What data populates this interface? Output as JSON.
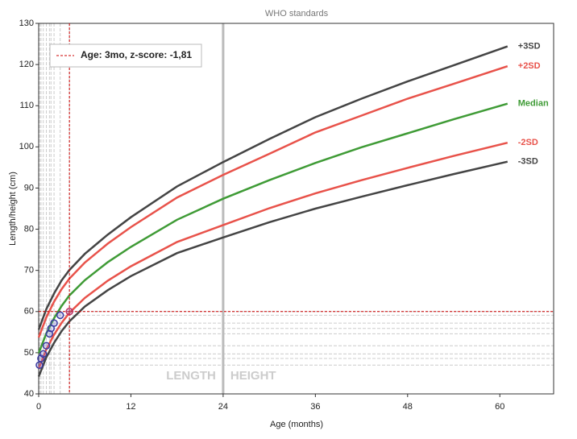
{
  "chart_data": {
    "type": "line",
    "title": "WHO standards",
    "x_label": "Age (months)",
    "y_label": "Length/height (cm)",
    "xlim": [
      0,
      67
    ],
    "ylim": [
      40,
      130
    ],
    "xticks": [
      0,
      12,
      24,
      36,
      48,
      60
    ],
    "yticks": [
      40,
      50,
      60,
      70,
      80,
      90,
      100,
      110,
      120,
      130
    ],
    "x": [
      0,
      1,
      2,
      3,
      4,
      6,
      9,
      12,
      18,
      24,
      30,
      36,
      42,
      48,
      54,
      61
    ],
    "series": [
      {
        "name": "+3SD",
        "color": "#444444",
        "values": [
          55.6,
          60.6,
          64.4,
          67.6,
          70.1,
          74.0,
          78.7,
          82.9,
          90.4,
          96.3,
          101.9,
          107.2,
          111.7,
          115.9,
          119.8,
          124.4
        ]
      },
      {
        "name": "+2SD",
        "color": "#e8524a",
        "values": [
          53.7,
          58.6,
          62.4,
          65.5,
          68.0,
          71.9,
          76.5,
          80.5,
          87.7,
          93.2,
          98.3,
          103.5,
          107.6,
          111.7,
          115.3,
          119.6
        ]
      },
      {
        "name": "Median",
        "color": "#3f9b36",
        "values": [
          49.9,
          54.7,
          58.4,
          61.4,
          63.9,
          67.6,
          72.0,
          75.7,
          82.3,
          87.4,
          91.9,
          96.1,
          99.9,
          103.3,
          106.7,
          110.5
        ]
      },
      {
        "name": "-2SD",
        "color": "#e8524a",
        "values": [
          46.1,
          50.8,
          54.4,
          57.3,
          59.7,
          63.3,
          67.5,
          71.0,
          76.9,
          81.0,
          85.1,
          88.7,
          91.9,
          94.9,
          97.8,
          101.0
        ]
      },
      {
        "name": "-3SD",
        "color": "#444444",
        "values": [
          44.2,
          48.9,
          52.4,
          55.3,
          57.6,
          61.2,
          65.2,
          68.6,
          74.2,
          78.0,
          81.7,
          85.0,
          87.9,
          90.7,
          93.4,
          96.4
        ]
      }
    ],
    "measurements": {
      "color": "#3a3aa0",
      "x": [
        0.1,
        0.3,
        0.6,
        1.0,
        1.4,
        1.6,
        2.0,
        2.8,
        4.0
      ],
      "values": [
        47.0,
        48.6,
        49.7,
        51.7,
        54.6,
        55.9,
        57.2,
        59.1,
        60.0
      ]
    },
    "divider": 24,
    "region_labels": [
      "LENGTH",
      "HEIGHT"
    ],
    "annotation": "Age: 3mo, z-score: -1,81"
  }
}
